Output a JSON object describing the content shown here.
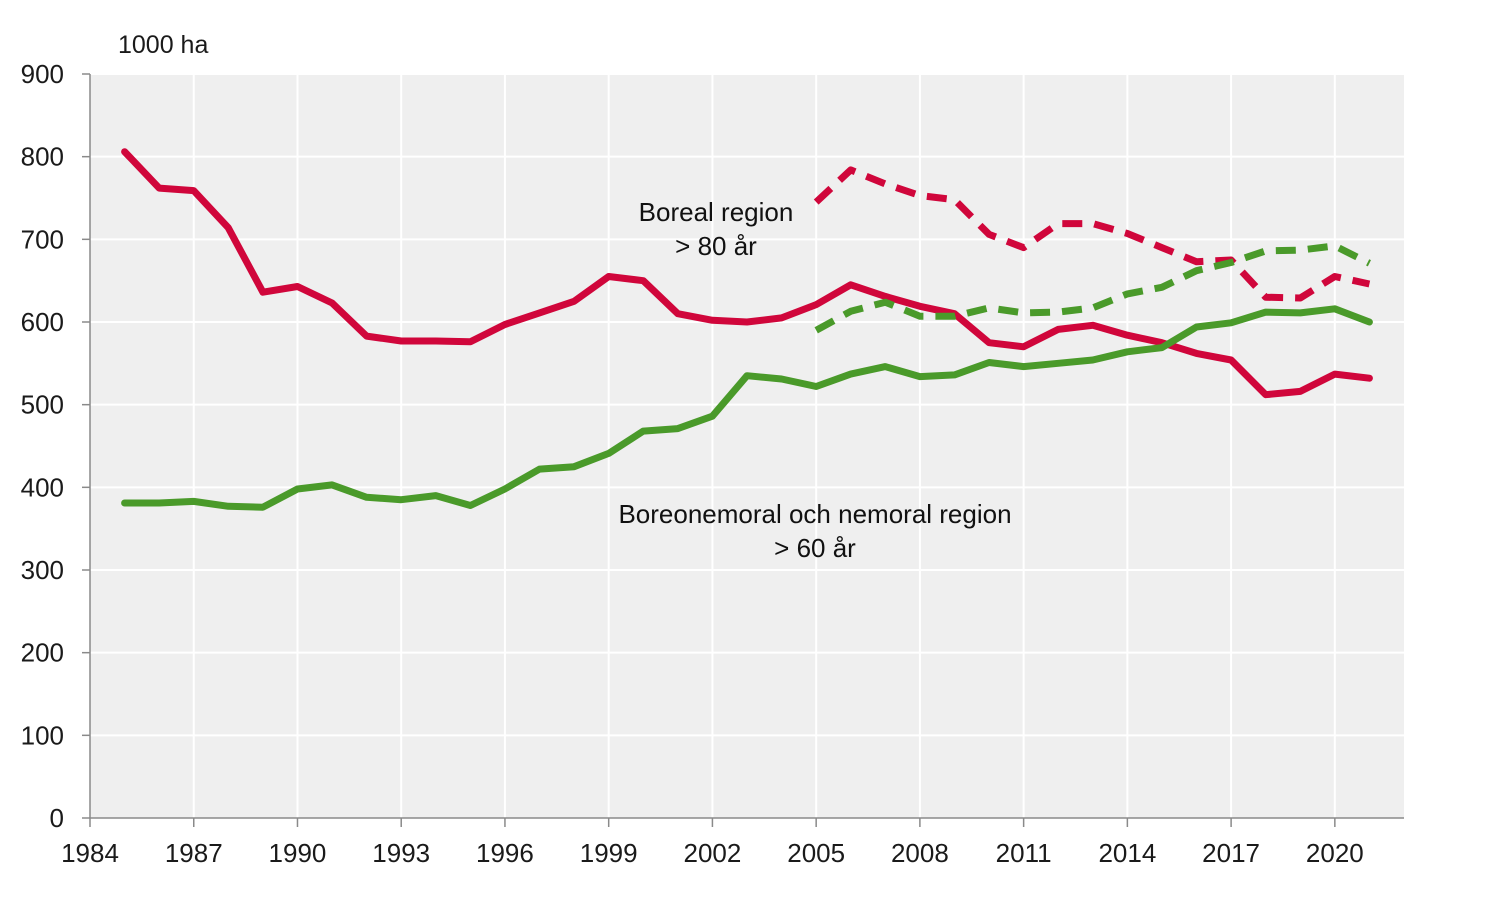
{
  "chart_data": {
    "type": "line",
    "ylabel": "1000 ha",
    "xlim": [
      1984,
      2022
    ],
    "ylim": [
      0,
      900
    ],
    "x_ticks": [
      "1984",
      "1987",
      "1990",
      "1993",
      "1996",
      "1999",
      "2002",
      "2005",
      "2008",
      "2011",
      "2014",
      "2017",
      "2020"
    ],
    "y_ticks": [
      "0",
      "100",
      "200",
      "300",
      "400",
      "500",
      "600",
      "700",
      "800",
      "900"
    ],
    "grid": true,
    "colors": {
      "red": "#d0063b",
      "green": "#4a9a2a",
      "plot_bg": "#efefef"
    },
    "annotations": [
      {
        "id": "boreal",
        "lines": [
          "Boreal region",
          "> 80 år"
        ]
      },
      {
        "id": "nemoral",
        "lines": [
          "Boreonemoral och nemoral region",
          "> 60 år"
        ]
      }
    ],
    "series": [
      {
        "id": "red-solid",
        "color": "red",
        "dash": false,
        "x": [
          1985,
          1986,
          1987,
          1988,
          1989,
          1990,
          1991,
          1992,
          1993,
          1994,
          1995,
          1996,
          1997,
          1998,
          1999,
          2000,
          2001,
          2002,
          2003,
          2004,
          2005,
          2006,
          2007,
          2008,
          2009,
          2010,
          2011,
          2012,
          2013,
          2014,
          2015,
          2016,
          2017,
          2018,
          2019,
          2020,
          2021
        ],
        "values": [
          806,
          762,
          759,
          714,
          636,
          643,
          623,
          583,
          577,
          577,
          576,
          597,
          611,
          625,
          655,
          650,
          610,
          602,
          600,
          605,
          621,
          645,
          631,
          619,
          610,
          575,
          570,
          591,
          596,
          584,
          575,
          562,
          554,
          512,
          516,
          537,
          532
        ]
      },
      {
        "id": "red-dashed",
        "color": "red",
        "dash": true,
        "x": [
          2005,
          2006,
          2007,
          2008,
          2009,
          2010,
          2011,
          2012,
          2013,
          2014,
          2015,
          2016,
          2017,
          2018,
          2019,
          2020,
          2021
        ],
        "values": [
          745,
          784,
          767,
          753,
          748,
          706,
          690,
          719,
          719,
          707,
          690,
          673,
          675,
          630,
          629,
          655,
          646
        ]
      },
      {
        "id": "green-solid",
        "color": "green",
        "dash": false,
        "x": [
          1985,
          1986,
          1987,
          1988,
          1989,
          1990,
          1991,
          1992,
          1993,
          1994,
          1995,
          1996,
          1997,
          1998,
          1999,
          2000,
          2001,
          2002,
          2003,
          2004,
          2005,
          2006,
          2007,
          2008,
          2009,
          2010,
          2011,
          2012,
          2013,
          2014,
          2015,
          2016,
          2017,
          2018,
          2019,
          2020,
          2021
        ],
        "values": [
          381,
          381,
          383,
          377,
          376,
          398,
          403,
          388,
          385,
          390,
          378,
          398,
          422,
          425,
          441,
          468,
          471,
          486,
          535,
          531,
          522,
          537,
          546,
          534,
          536,
          551,
          546,
          550,
          554,
          564,
          569,
          594,
          599,
          612,
          611,
          616,
          600
        ]
      },
      {
        "id": "green-dashed",
        "color": "green",
        "dash": true,
        "x": [
          2005,
          2006,
          2007,
          2008,
          2009,
          2010,
          2011,
          2012,
          2013,
          2014,
          2015,
          2016,
          2017,
          2018,
          2019,
          2020,
          2021
        ],
        "values": [
          590,
          613,
          624,
          607,
          607,
          617,
          611,
          612,
          617,
          634,
          642,
          662,
          672,
          686,
          687,
          692,
          671
        ]
      }
    ]
  }
}
